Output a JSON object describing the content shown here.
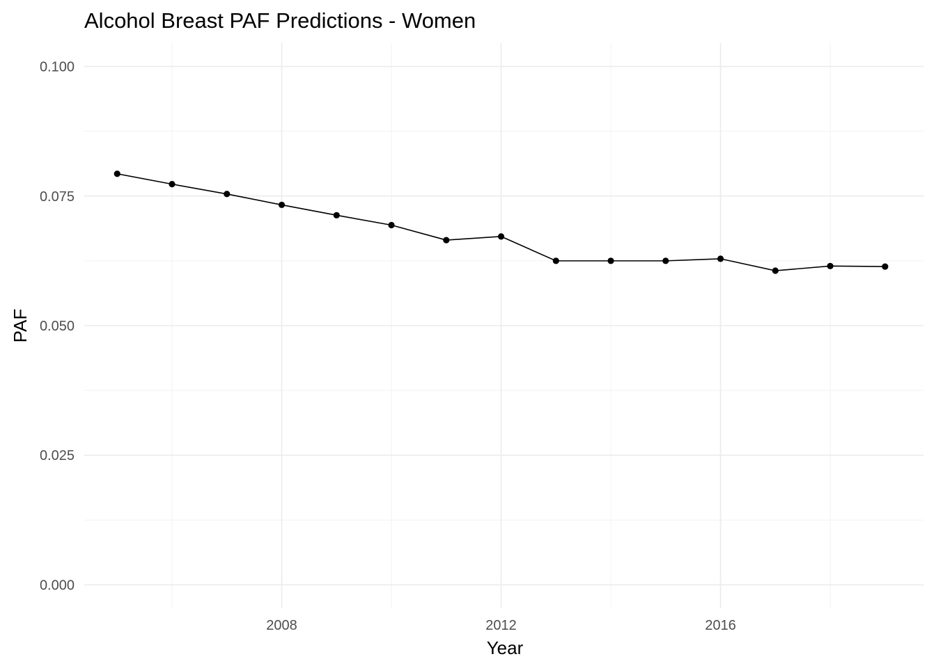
{
  "chart_data": {
    "type": "line",
    "title": "Alcohol Breast PAF Predictions - Women",
    "xlabel": "Year",
    "ylabel": "PAF",
    "xlim": [
      2004.4,
      2019.7
    ],
    "ylim": [
      -0.0045,
      0.1045
    ],
    "x_ticks": [
      2008,
      2012,
      2016
    ],
    "x_tick_labels": [
      "2008",
      "2012",
      "2016"
    ],
    "x_minor_ticks": [
      2006,
      2010,
      2014,
      2018
    ],
    "y_ticks": [
      0.0,
      0.025,
      0.05,
      0.075,
      0.1
    ],
    "y_tick_labels": [
      "0.000",
      "0.025",
      "0.050",
      "0.075",
      "0.100"
    ],
    "y_minor_ticks": [
      0.0125,
      0.0375,
      0.0625,
      0.0875
    ],
    "grid": true,
    "legend": "none",
    "series": [
      {
        "color": "#000000",
        "x": [
          2005,
          2006,
          2007,
          2008,
          2009,
          2010,
          2011,
          2012,
          2013,
          2014,
          2015,
          2016,
          2017,
          2018,
          2019
        ],
        "y": [
          0.0793,
          0.0773,
          0.0754,
          0.0733,
          0.0713,
          0.0694,
          0.0665,
          0.0672,
          0.0625,
          0.0625,
          0.0625,
          0.0629,
          0.0606,
          0.0615,
          0.0614
        ]
      }
    ]
  }
}
